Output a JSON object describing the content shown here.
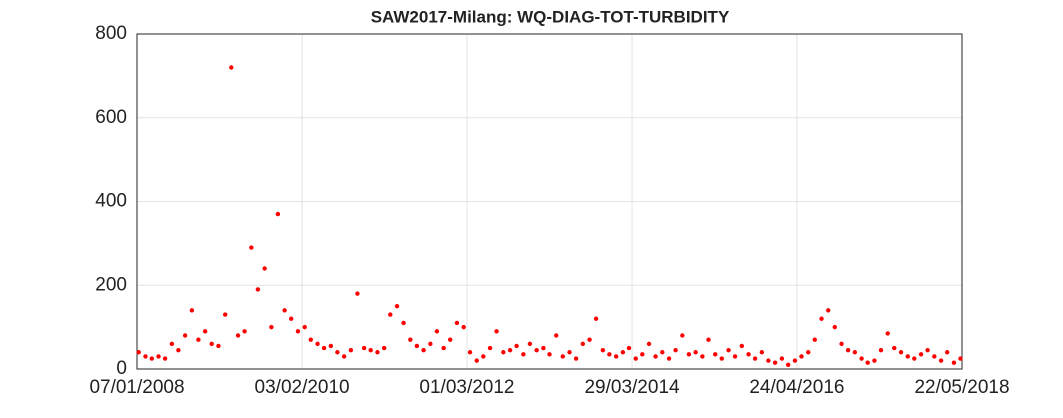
{
  "chart_data": {
    "type": "scatter",
    "title": "SAW2017-Milang: WQ-DIAG-TOT-TURBIDITY",
    "x": [
      "15/01/2008",
      "15/02/2008",
      "15/03/2008",
      "15/04/2008",
      "15/05/2008",
      "15/06/2008",
      "15/07/2008",
      "15/08/2008",
      "15/09/2008",
      "15/10/2008",
      "15/11/2008",
      "15/12/2008",
      "15/01/2009",
      "15/02/2009",
      "15/03/2009",
      "15/04/2009",
      "15/05/2009",
      "15/06/2009",
      "15/07/2009",
      "15/08/2009",
      "15/09/2009",
      "15/10/2009",
      "15/11/2009",
      "15/12/2009",
      "15/01/2010",
      "15/02/2010",
      "15/03/2010",
      "15/04/2010",
      "15/05/2010",
      "15/06/2010",
      "15/07/2010",
      "15/08/2010",
      "15/09/2010",
      "15/10/2010",
      "15/11/2010",
      "15/12/2010",
      "15/01/2011",
      "15/02/2011",
      "15/03/2011",
      "15/04/2011",
      "15/05/2011",
      "15/06/2011",
      "15/07/2011",
      "15/08/2011",
      "15/09/2011",
      "15/10/2011",
      "15/11/2011",
      "15/12/2011",
      "15/01/2012",
      "15/02/2012",
      "15/03/2012",
      "15/04/2012",
      "15/05/2012",
      "15/06/2012",
      "15/07/2012",
      "15/08/2012",
      "15/09/2012",
      "15/10/2012",
      "15/11/2012",
      "15/12/2012",
      "15/01/2013",
      "15/02/2013",
      "15/03/2013",
      "15/04/2013",
      "15/05/2013",
      "15/06/2013",
      "15/07/2013",
      "15/08/2013",
      "15/09/2013",
      "15/10/2013",
      "15/11/2013",
      "15/12/2013",
      "15/01/2014",
      "15/02/2014",
      "15/03/2014",
      "15/04/2014",
      "15/05/2014",
      "15/06/2014",
      "15/07/2014",
      "15/08/2014",
      "15/09/2014",
      "15/10/2014",
      "15/11/2014",
      "15/12/2014",
      "15/01/2015",
      "15/02/2015",
      "15/03/2015",
      "15/04/2015",
      "15/05/2015",
      "15/06/2015",
      "15/07/2015",
      "15/08/2015",
      "15/09/2015",
      "15/10/2015",
      "15/11/2015",
      "15/12/2015",
      "15/01/2016",
      "15/02/2016",
      "15/03/2016",
      "15/04/2016",
      "15/05/2016",
      "15/06/2016",
      "15/07/2016",
      "15/08/2016",
      "15/09/2016",
      "15/10/2016",
      "15/11/2016",
      "15/12/2016",
      "15/01/2017",
      "15/02/2017",
      "15/03/2017",
      "15/04/2017",
      "15/05/2017",
      "15/06/2017",
      "15/07/2017",
      "15/08/2017",
      "15/09/2017",
      "15/10/2017",
      "15/11/2017",
      "15/12/2017",
      "15/01/2018",
      "15/02/2018",
      "15/03/2018",
      "15/04/2018",
      "15/05/2018"
    ],
    "values": [
      40,
      30,
      25,
      30,
      25,
      60,
      45,
      80,
      140,
      70,
      90,
      60,
      55,
      130,
      720,
      80,
      90,
      290,
      190,
      240,
      100,
      370,
      140,
      120,
      90,
      100,
      70,
      60,
      50,
      55,
      40,
      30,
      45,
      180,
      50,
      45,
      40,
      50,
      130,
      150,
      110,
      70,
      55,
      45,
      60,
      90,
      50,
      70,
      110,
      100,
      40,
      20,
      30,
      50,
      90,
      40,
      45,
      55,
      35,
      60,
      45,
      50,
      35,
      80,
      30,
      40,
      25,
      60,
      70,
      120,
      45,
      35,
      30,
      40,
      50,
      25,
      35,
      60,
      30,
      40,
      25,
      45,
      80,
      35,
      40,
      30,
      70,
      35,
      25,
      45,
      30,
      55,
      35,
      25,
      40,
      20,
      15,
      25,
      10,
      20,
      30,
      40,
      70,
      120,
      140,
      100,
      60,
      45,
      40,
      25,
      15,
      20,
      45,
      85,
      50,
      40,
      30,
      25,
      35,
      45,
      30,
      20,
      40,
      15,
      25
    ],
    "color": "#ff0000",
    "xlim": [
      "07/01/2008",
      "22/05/2018"
    ],
    "xticks": [
      "07/01/2008",
      "03/02/2010",
      "01/03/2012",
      "29/03/2014",
      "24/04/2016",
      "22/05/2018"
    ],
    "ylim": [
      0,
      800
    ],
    "yticks": [
      0,
      200,
      400,
      600,
      800
    ],
    "grid": true
  }
}
